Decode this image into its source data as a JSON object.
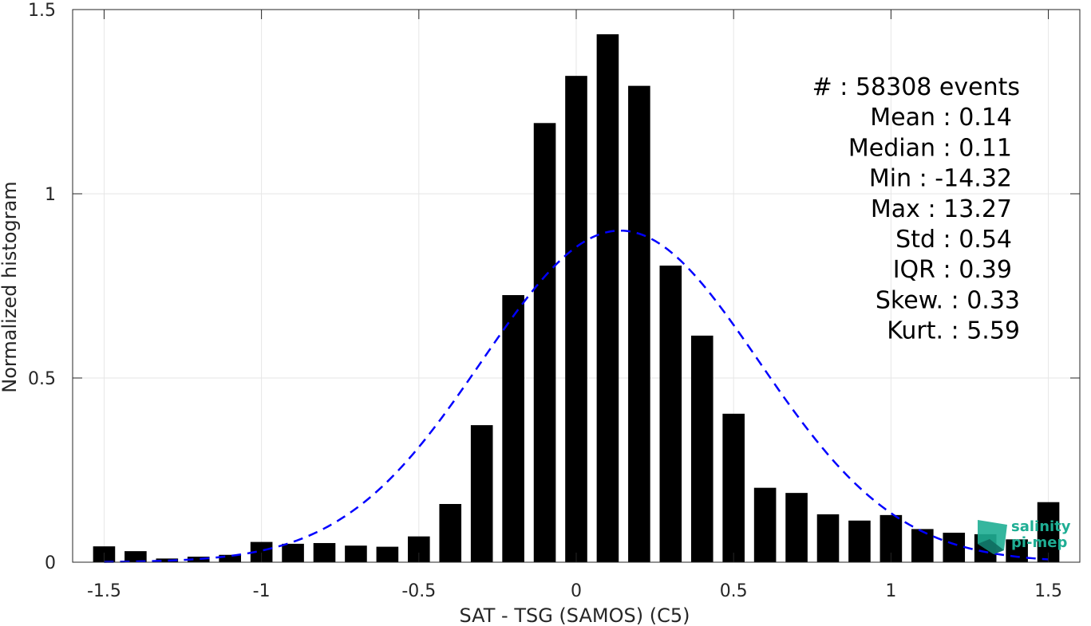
{
  "chart_data": {
    "type": "bar",
    "xlabel": "SAT - TSG (SAMOS) (C5)",
    "ylabel": "Normalized histogram",
    "xlim": [
      -1.6,
      1.6
    ],
    "ylim": [
      0,
      1.5
    ],
    "x_ticks": [
      "-1.5",
      "-1",
      "-0.5",
      "0",
      "0.5",
      "1",
      "1.5"
    ],
    "y_ticks": [
      "0",
      "0.5",
      "1",
      "1.5"
    ],
    "x_tick_values": [
      -1.5,
      -1,
      -0.5,
      0,
      0.5,
      1,
      1.5
    ],
    "y_tick_values": [
      0,
      0.5,
      1,
      1.5
    ],
    "grid": true,
    "bar_width": 0.07,
    "x": [
      -1.5,
      -1.4,
      -1.3,
      -1.2,
      -1.1,
      -1.0,
      -0.9,
      -0.8,
      -0.7,
      -0.6,
      -0.5,
      -0.4,
      -0.3,
      -0.2,
      -0.1,
      0.0,
      0.1,
      0.2,
      0.3,
      0.4,
      0.5,
      0.6,
      0.7,
      0.8,
      0.9,
      1.0,
      1.1,
      1.2,
      1.3,
      1.4,
      1.5
    ],
    "values": [
      0.043,
      0.03,
      0.01,
      0.015,
      0.02,
      0.055,
      0.05,
      0.052,
      0.045,
      0.042,
      0.07,
      0.158,
      0.372,
      0.725,
      1.192,
      1.32,
      1.433,
      1.293,
      0.805,
      0.615,
      0.403,
      0.202,
      0.188,
      0.13,
      0.113,
      0.128,
      0.09,
      0.08,
      0.076,
      0.062,
      0.163
    ],
    "bar_color": "#000000",
    "fit": {
      "type": "normal",
      "mean": 0.14,
      "std": 0.44,
      "peak": 0.9,
      "color": "#0000ff",
      "style": "dashed"
    },
    "annotations": [
      "#  : 58308 events",
      "Mean : 0.14",
      "Median : 0.11",
      "Min : -14.32",
      "Max : 13.27",
      "Std : 0.54",
      "IQR : 0.39",
      "Skew. : 0.33",
      "Kurt. : 5.59"
    ],
    "logo": {
      "line1": "salinity",
      "line2": "pi-mep",
      "color": "#1fae94"
    }
  }
}
